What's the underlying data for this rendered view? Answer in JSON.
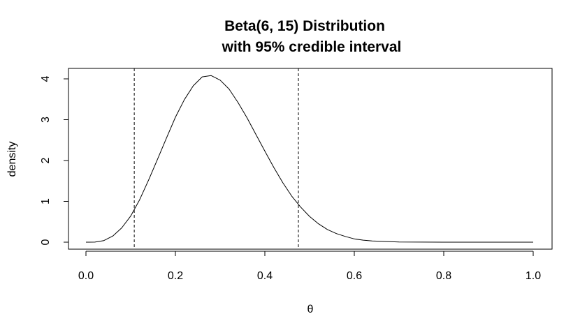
{
  "chart_data": {
    "type": "line",
    "title_lines": [
      "Beta(6, 15) Distribution",
      "with 95% credible interval"
    ],
    "xlabel": "θ",
    "ylabel": "density",
    "xlim": [
      0.0,
      1.0
    ],
    "ylim": [
      0,
      4
    ],
    "x_ticks": [
      "0.0",
      "0.2",
      "0.4",
      "0.6",
      "0.8",
      "1.0"
    ],
    "y_ticks": [
      "0",
      "1",
      "2",
      "3",
      "4"
    ],
    "grid": false,
    "legend": "none",
    "series": [
      {
        "x": [
          0.0,
          0.02,
          0.04,
          0.06,
          0.08,
          0.1,
          0.12,
          0.14,
          0.16,
          0.18,
          0.2,
          0.22,
          0.24,
          0.26,
          0.28,
          0.3,
          0.32,
          0.34,
          0.36,
          0.38,
          0.4,
          0.42,
          0.44,
          0.46,
          0.48,
          0.5,
          0.52,
          0.54,
          0.56,
          0.58,
          0.6,
          0.62,
          0.64,
          0.66,
          0.7,
          0.8,
          0.9,
          1.0
        ],
        "y": [
          0.0,
          0.002,
          0.04,
          0.15,
          0.35,
          0.64,
          1.04,
          1.52,
          2.03,
          2.55,
          3.06,
          3.49,
          3.83,
          4.05,
          4.08,
          3.97,
          3.75,
          3.42,
          3.05,
          2.64,
          2.23,
          1.83,
          1.46,
          1.13,
          0.86,
          0.63,
          0.45,
          0.31,
          0.21,
          0.14,
          0.08,
          0.05,
          0.03,
          0.02,
          0.005,
          0.0,
          0.0,
          0.0
        ]
      }
    ],
    "credible_interval": [
      0.108,
      0.475
    ],
    "colors": {
      "line": "#000000",
      "interval": "#000000"
    }
  }
}
